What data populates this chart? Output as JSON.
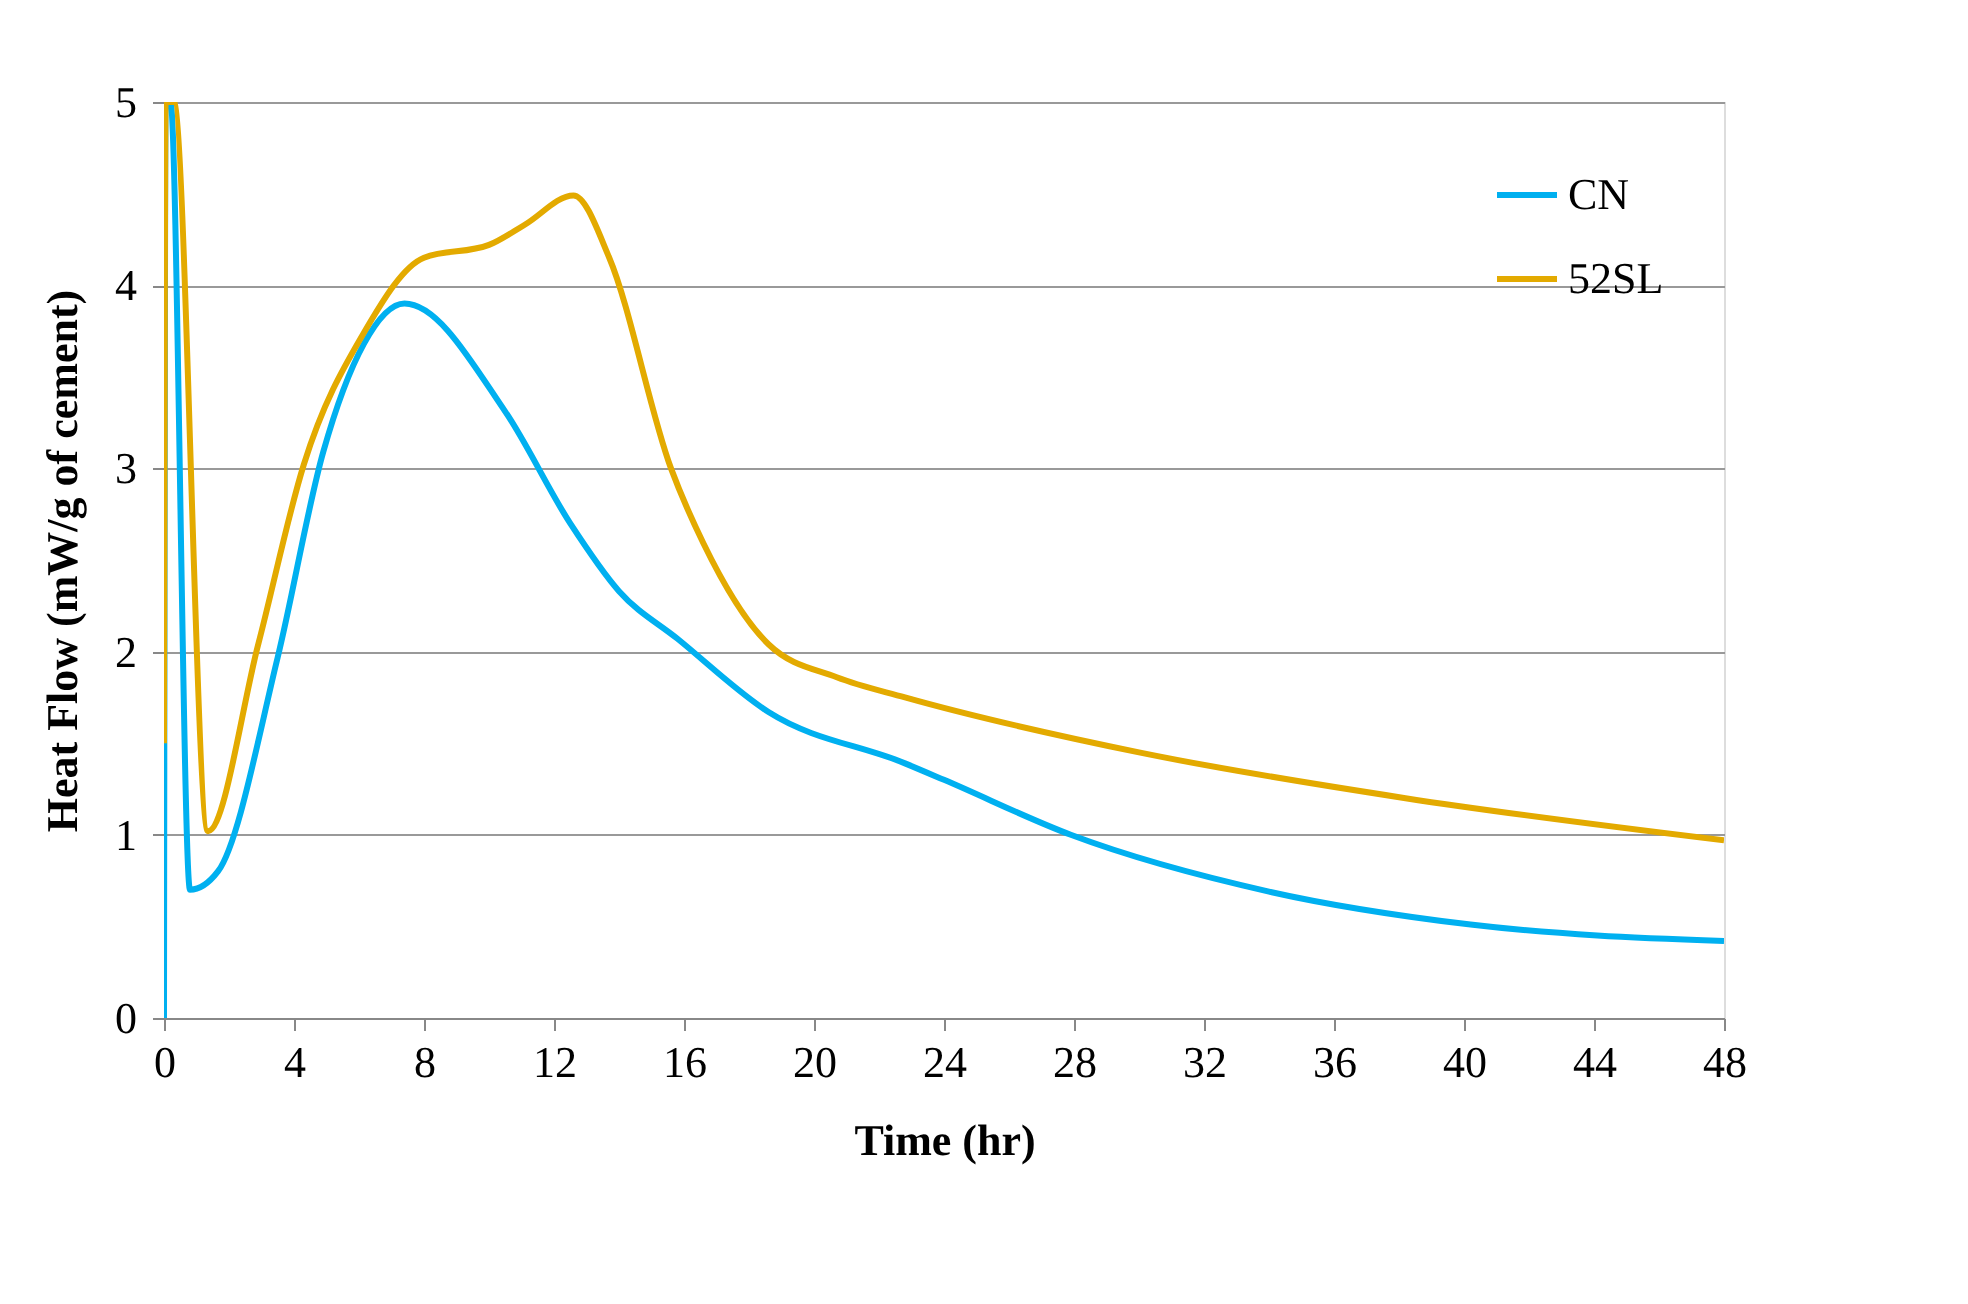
{
  "chart_data": {
    "type": "line",
    "xlabel": "Time (hr)",
    "ylabel": "Heat Flow (mW/g of cement)",
    "xlim": [
      0,
      48
    ],
    "xticks": [
      0,
      4,
      8,
      12,
      16,
      20,
      24,
      28,
      32,
      36,
      40,
      44,
      48
    ],
    "ylim": [
      0,
      5
    ],
    "yticks": [
      0,
      1,
      2,
      3,
      4,
      5
    ],
    "grid": "y",
    "legend": "top right",
    "marker": "none",
    "line_style": "solid",
    "series": [
      {
        "name": "CN",
        "color": "#00b0f0",
        "x": [
          0,
          0.05,
          0.2,
          0.8,
          1.66,
          3.5,
          4.9,
          6.15,
          7.4,
          10.5,
          12.5,
          14,
          15.8,
          18.6,
          22.8,
          24,
          27.9,
          34,
          40.2,
          48
        ],
        "values": [
          0,
          5,
          5,
          0.7,
          0.8,
          1.97,
          3.09,
          3.68,
          3.9,
          3.31,
          2.7,
          2.33,
          2.07,
          1.67,
          1.39,
          1.3,
          1.0,
          0.69,
          0.51,
          0.42
        ]
      },
      {
        "name": "52SL",
        "color": "#e3aa00",
        "x": [
          0,
          0.05,
          0.3,
          1.35,
          2.9,
          4.3,
          6.15,
          8,
          10,
          11.1,
          12.6,
          13.7,
          15.6,
          16.6,
          18.6,
          20.7,
          22.8,
          30,
          38.2,
          48
        ],
        "values": [
          1.5,
          5,
          5,
          1.02,
          2.04,
          3.02,
          3.74,
          4.15,
          4.22,
          4.33,
          4.49,
          4.15,
          3.0,
          2.59,
          2.04,
          1.86,
          1.75,
          1.45,
          1.2,
          0.97
        ]
      }
    ]
  }
}
